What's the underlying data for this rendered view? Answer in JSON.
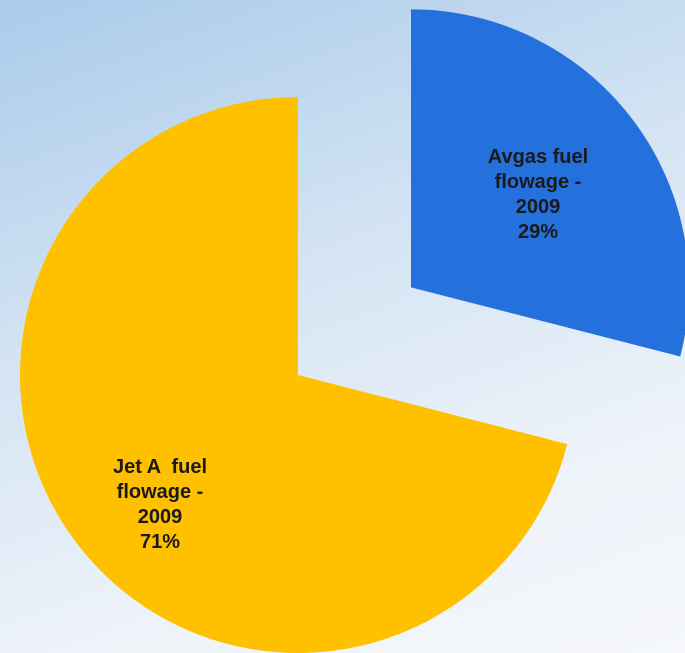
{
  "chart_data": {
    "type": "pie",
    "categories": [
      "Avgas fuel\nflowage -\n2009",
      "Jet A  fuel\nflowage -\n2009"
    ],
    "values": [
      29,
      71
    ],
    "value_labels": [
      "29%",
      "71%"
    ],
    "colors": [
      "#2470dc",
      "#ffc000"
    ]
  }
}
